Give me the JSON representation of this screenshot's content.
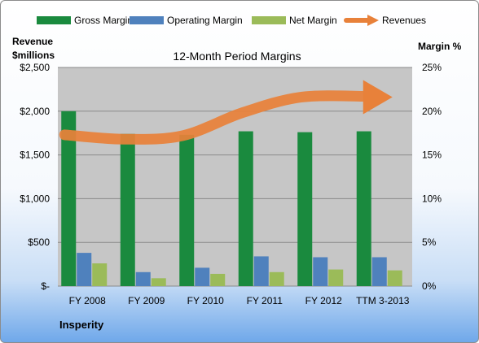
{
  "chart_data": {
    "type": "bar",
    "title": "12-Month Period Margins",
    "company": "Insperity",
    "ylabel_left": [
      "Revenue",
      "$millions"
    ],
    "ylabel_right": "Margin %",
    "categories": [
      "FY 2008",
      "FY 2009",
      "FY 2010",
      "FY 2011",
      "FY 2012",
      "TTM 3-2013"
    ],
    "yticks_left": [
      "$-",
      "$500",
      "$1,000",
      "$1,500",
      "$2,000",
      "$2,500"
    ],
    "yticks_right": [
      "0%",
      "5%",
      "10%",
      "15%",
      "20%",
      "25%"
    ],
    "ylim_left": [
      0,
      2500
    ],
    "ylim_right": [
      0,
      25
    ],
    "grid": true,
    "legend_position": "top",
    "series": [
      {
        "name": "Gross Margin",
        "kind": "bar",
        "axis": "right",
        "color": "#1a8a3e",
        "values": [
          20.0,
          17.4,
          17.3,
          17.7,
          17.6,
          17.7
        ]
      },
      {
        "name": "Operating Margin",
        "kind": "bar",
        "axis": "right",
        "color": "#4f81bd",
        "values": [
          3.8,
          1.6,
          2.1,
          3.4,
          3.3,
          3.3
        ]
      },
      {
        "name": "Net Margin",
        "kind": "bar",
        "axis": "right",
        "color": "#9bbb59",
        "values": [
          2.6,
          0.9,
          1.4,
          1.6,
          1.9,
          1.8
        ]
      },
      {
        "name": "Revenues",
        "kind": "line",
        "axis": "left",
        "color": "#e8813a",
        "values": [
          1730,
          1680,
          1720,
          1980,
          2160,
          2170
        ]
      }
    ]
  }
}
